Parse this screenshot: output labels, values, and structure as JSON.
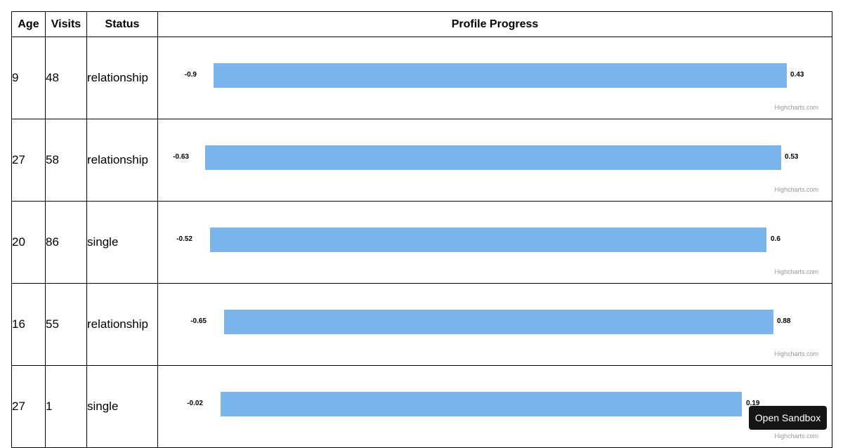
{
  "table": {
    "headers": {
      "age": "Age",
      "visits": "Visits",
      "status": "Status",
      "progress": "Profile Progress"
    },
    "rows": [
      {
        "age": "9",
        "visits": "48",
        "status": "relationship",
        "progress_min": "-0.9",
        "progress_max": "0.43",
        "credit": "Highcharts.com"
      },
      {
        "age": "27",
        "visits": "58",
        "status": "relationship",
        "progress_min": "-0.63",
        "progress_max": "0.53",
        "credit": "Highcharts.com"
      },
      {
        "age": "20",
        "visits": "86",
        "status": "single",
        "progress_min": "-0.52",
        "progress_max": "0.6",
        "credit": "Highcharts.com"
      },
      {
        "age": "16",
        "visits": "55",
        "status": "relationship",
        "progress_min": "-0.65",
        "progress_max": "0.88",
        "credit": "Highcharts.com"
      },
      {
        "age": "27",
        "visits": "1",
        "status": "single",
        "progress_min": "-0.02",
        "progress_max": "0.19",
        "credit": "Highcharts.com"
      }
    ]
  },
  "sandbox_button": {
    "label": "Open Sandbox"
  },
  "colors": {
    "bar": "#7cb5ec",
    "credit": "#999999",
    "button_bg": "#151515"
  }
}
